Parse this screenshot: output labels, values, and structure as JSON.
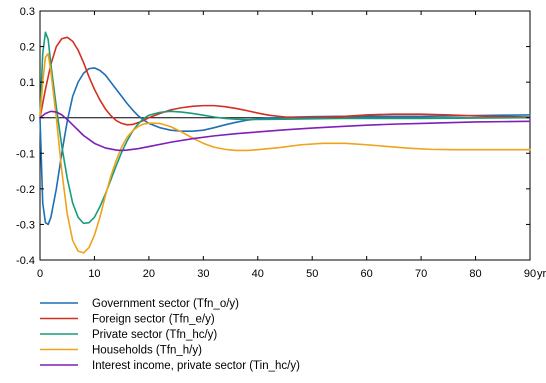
{
  "chart_data": {
    "type": "line",
    "title": "",
    "xlabel": "",
    "ylabel": "",
    "x_unit_label": "yr",
    "xlim": [
      0,
      90
    ],
    "ylim": [
      -0.4,
      0.3
    ],
    "x_ticks": [
      0,
      10,
      20,
      30,
      40,
      50,
      60,
      70,
      80,
      90
    ],
    "x_tick_labels": [
      "0",
      "10",
      "20",
      "30",
      "40",
      "50",
      "60",
      "70",
      "80",
      "90"
    ],
    "y_ticks": [
      0.3,
      0.2,
      0.1,
      0,
      -0.1,
      -0.2,
      -0.3,
      -0.4
    ],
    "y_tick_labels": [
      "0.3",
      "0.2",
      "0.1",
      "0",
      "-0.1",
      "-0.2",
      "-0.3",
      "-0.4"
    ],
    "grid": false,
    "zero_line": true,
    "legend_position": "bottom",
    "series": [
      {
        "name": "Government sector (Tfn_o/y)",
        "color": "#1f6fb4",
        "points": [
          [
            0,
            0
          ],
          [
            0.5,
            -0.24
          ],
          [
            1,
            -0.295
          ],
          [
            1.5,
            -0.3
          ],
          [
            2,
            -0.28
          ],
          [
            3,
            -0.2
          ],
          [
            4,
            -0.1
          ],
          [
            5,
            -0.01
          ],
          [
            6,
            0.06
          ],
          [
            7,
            0.1
          ],
          [
            8,
            0.125
          ],
          [
            9,
            0.138
          ],
          [
            10,
            0.14
          ],
          [
            11,
            0.133
          ],
          [
            12,
            0.12
          ],
          [
            13,
            0.1
          ],
          [
            14,
            0.08
          ],
          [
            15,
            0.06
          ],
          [
            16,
            0.04
          ],
          [
            17,
            0.022
          ],
          [
            18,
            0.006
          ],
          [
            19,
            -0.006
          ],
          [
            20,
            -0.016
          ],
          [
            22,
            -0.028
          ],
          [
            24,
            -0.035
          ],
          [
            26,
            -0.038
          ],
          [
            28,
            -0.038
          ],
          [
            30,
            -0.035
          ],
          [
            32,
            -0.028
          ],
          [
            34,
            -0.02
          ],
          [
            36,
            -0.013
          ],
          [
            38,
            -0.007
          ],
          [
            40,
            -0.003
          ],
          [
            45,
            0.001
          ],
          [
            50,
            0.003
          ],
          [
            55,
            0.004
          ],
          [
            60,
            0.004
          ],
          [
            65,
            0.004
          ],
          [
            70,
            0.004
          ],
          [
            75,
            0.005
          ],
          [
            80,
            0.006
          ],
          [
            85,
            0.007
          ],
          [
            90,
            0.008
          ]
        ]
      },
      {
        "name": "Foreign sector (Tfn_e/y)",
        "color": "#d42f20",
        "points": [
          [
            0,
            0
          ],
          [
            0.5,
            0.04
          ],
          [
            1,
            0.08
          ],
          [
            2,
            0.15
          ],
          [
            3,
            0.2
          ],
          [
            4,
            0.222
          ],
          [
            5,
            0.226
          ],
          [
            6,
            0.215
          ],
          [
            7,
            0.19
          ],
          [
            8,
            0.155
          ],
          [
            9,
            0.115
          ],
          [
            10,
            0.08
          ],
          [
            11,
            0.05
          ],
          [
            12,
            0.025
          ],
          [
            13,
            0.006
          ],
          [
            14,
            -0.008
          ],
          [
            15,
            -0.016
          ],
          [
            16,
            -0.02
          ],
          [
            17,
            -0.019
          ],
          [
            18,
            -0.014
          ],
          [
            19,
            -0.008
          ],
          [
            20,
            0
          ],
          [
            22,
            0.012
          ],
          [
            24,
            0.022
          ],
          [
            26,
            0.028
          ],
          [
            28,
            0.032
          ],
          [
            30,
            0.034
          ],
          [
            32,
            0.034
          ],
          [
            34,
            0.031
          ],
          [
            36,
            0.026
          ],
          [
            38,
            0.02
          ],
          [
            40,
            0.013
          ],
          [
            42,
            0.007
          ],
          [
            45,
            0.002
          ],
          [
            48,
            0
          ],
          [
            50,
            0
          ],
          [
            55,
            0.003
          ],
          [
            60,
            0.008
          ],
          [
            65,
            0.01
          ],
          [
            70,
            0.01
          ],
          [
            75,
            0.008
          ],
          [
            80,
            0.005
          ],
          [
            85,
            0.003
          ],
          [
            90,
            0.002
          ]
        ]
      },
      {
        "name": "Private sector (Tfn_hc/y)",
        "color": "#1a9c7c",
        "points": [
          [
            0,
            0
          ],
          [
            0.5,
            0.18
          ],
          [
            1,
            0.24
          ],
          [
            1.5,
            0.22
          ],
          [
            2,
            0.15
          ],
          [
            3,
            0.03
          ],
          [
            4,
            -0.08
          ],
          [
            5,
            -0.17
          ],
          [
            6,
            -0.24
          ],
          [
            7,
            -0.28
          ],
          [
            8,
            -0.297
          ],
          [
            9,
            -0.295
          ],
          [
            10,
            -0.28
          ],
          [
            11,
            -0.25
          ],
          [
            12,
            -0.215
          ],
          [
            13,
            -0.175
          ],
          [
            14,
            -0.135
          ],
          [
            15,
            -0.097
          ],
          [
            16,
            -0.065
          ],
          [
            17,
            -0.038
          ],
          [
            18,
            -0.018
          ],
          [
            19,
            -0.003
          ],
          [
            20,
            0.007
          ],
          [
            22,
            0.015
          ],
          [
            24,
            0.018
          ],
          [
            26,
            0.016
          ],
          [
            28,
            0.012
          ],
          [
            30,
            0.007
          ],
          [
            32,
            0.002
          ],
          [
            34,
            -0.002
          ],
          [
            36,
            -0.004
          ],
          [
            38,
            -0.005
          ],
          [
            40,
            -0.005
          ],
          [
            45,
            -0.004
          ],
          [
            50,
            -0.003
          ],
          [
            55,
            -0.002
          ],
          [
            60,
            -0.002
          ],
          [
            70,
            -0.002
          ],
          [
            80,
            -0.001
          ],
          [
            90,
            0
          ]
        ]
      },
      {
        "name": "Households (Tfn_h/y)",
        "color": "#f0a21a",
        "points": [
          [
            0,
            0
          ],
          [
            0.5,
            0.1
          ],
          [
            1,
            0.17
          ],
          [
            1.5,
            0.18
          ],
          [
            2,
            0.13
          ],
          [
            3,
            0.0
          ],
          [
            4,
            -0.15
          ],
          [
            5,
            -0.27
          ],
          [
            6,
            -0.345
          ],
          [
            7,
            -0.375
          ],
          [
            8,
            -0.38
          ],
          [
            9,
            -0.365
          ],
          [
            10,
            -0.33
          ],
          [
            11,
            -0.28
          ],
          [
            12,
            -0.22
          ],
          [
            13,
            -0.165
          ],
          [
            14,
            -0.12
          ],
          [
            15,
            -0.082
          ],
          [
            16,
            -0.055
          ],
          [
            17,
            -0.037
          ],
          [
            18,
            -0.025
          ],
          [
            19,
            -0.018
          ],
          [
            20,
            -0.015
          ],
          [
            22,
            -0.016
          ],
          [
            24,
            -0.025
          ],
          [
            26,
            -0.04
          ],
          [
            28,
            -0.057
          ],
          [
            30,
            -0.072
          ],
          [
            32,
            -0.083
          ],
          [
            34,
            -0.089
          ],
          [
            36,
            -0.092
          ],
          [
            38,
            -0.092
          ],
          [
            40,
            -0.09
          ],
          [
            44,
            -0.084
          ],
          [
            48,
            -0.076
          ],
          [
            52,
            -0.072
          ],
          [
            56,
            -0.072
          ],
          [
            60,
            -0.076
          ],
          [
            64,
            -0.081
          ],
          [
            68,
            -0.086
          ],
          [
            72,
            -0.089
          ],
          [
            76,
            -0.09
          ],
          [
            80,
            -0.09
          ],
          [
            85,
            -0.09
          ],
          [
            90,
            -0.09
          ]
        ]
      },
      {
        "name": "Interest income, private sector (Tin_hc/y)",
        "color": "#7e1fb8",
        "points": [
          [
            0,
            0
          ],
          [
            0.5,
            0.006
          ],
          [
            1,
            0.012
          ],
          [
            2,
            0.018
          ],
          [
            3,
            0.016
          ],
          [
            4,
            0.008
          ],
          [
            5,
            -0.005
          ],
          [
            6,
            -0.02
          ],
          [
            8,
            -0.05
          ],
          [
            10,
            -0.072
          ],
          [
            12,
            -0.085
          ],
          [
            14,
            -0.091
          ],
          [
            15,
            -0.092
          ],
          [
            16,
            -0.091
          ],
          [
            18,
            -0.087
          ],
          [
            20,
            -0.081
          ],
          [
            24,
            -0.069
          ],
          [
            28,
            -0.059
          ],
          [
            32,
            -0.051
          ],
          [
            36,
            -0.045
          ],
          [
            40,
            -0.04
          ],
          [
            45,
            -0.034
          ],
          [
            50,
            -0.029
          ],
          [
            55,
            -0.025
          ],
          [
            60,
            -0.021
          ],
          [
            65,
            -0.018
          ],
          [
            70,
            -0.016
          ],
          [
            75,
            -0.014
          ],
          [
            80,
            -0.012
          ],
          [
            85,
            -0.011
          ],
          [
            90,
            -0.01
          ]
        ]
      }
    ]
  }
}
